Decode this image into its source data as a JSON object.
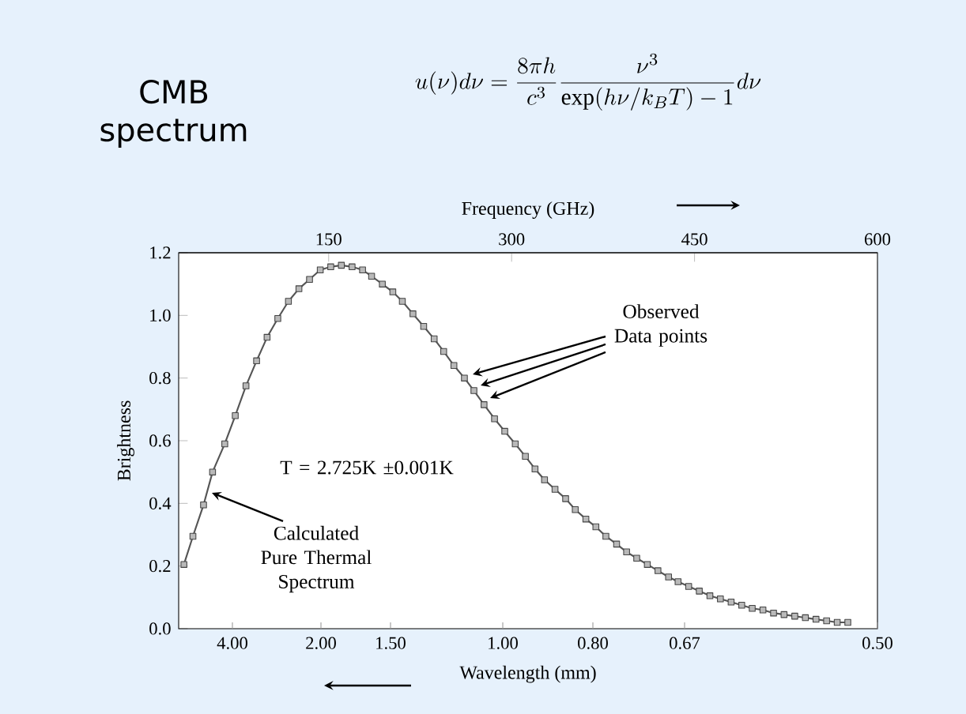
{
  "chart_data": {
    "type": "line",
    "title": "CMB spectrum",
    "subtitle": "u(\\nu)d\\nu=\\frac{8\\pi h}{c^3}\\frac{\\nu^3}{\\exp(h\\nu/k_BT)-1}d\\nu",
    "xlabel": "Frequency (GHz)",
    "x2label": "Wavelength (mm)",
    "ylabel": "Brightness",
    "x": [
      31.3,
      38.7,
      47.4,
      54.8,
      64.8,
      73.4,
      82.2,
      90.9,
      99.5,
      108.3,
      117,
      125.6,
      134.3,
      143.1,
      151.7,
      160.4,
      169.2,
      177.8,
      185.2,
      194,
      202.6,
      210.4,
      219.1,
      227.9,
      236.5,
      244.3,
      252.7,
      261.3,
      269.1,
      277.4,
      286,
      294.4,
      303,
      311.3,
      319.2,
      327,
      335.6,
      344.3,
      352.2,
      360.9,
      369.1,
      377.3,
      386.1,
      394.3,
      402.6,
      411.3,
      420,
      428.7,
      436.5,
      445.2,
      453.9,
      462.6,
      471.2,
      480,
      488.7,
      497.3,
      506.1,
      514.8,
      523.4,
      532.2,
      540.9,
      549.6,
      558.3,
      567,
      575.7
    ],
    "series": [
      {
        "color": "#555555",
        "values": [
          0.205,
          0.295,
          0.395,
          0.5,
          0.59,
          0.68,
          0.775,
          0.855,
          0.93,
          0.99,
          1.045,
          1.085,
          1.115,
          1.145,
          1.155,
          1.16,
          1.155,
          1.145,
          1.125,
          1.1,
          1.075,
          1.045,
          1.005,
          0.965,
          0.925,
          0.885,
          0.84,
          0.8,
          0.76,
          0.715,
          0.67,
          0.63,
          0.59,
          0.55,
          0.51,
          0.475,
          0.445,
          0.415,
          0.38,
          0.35,
          0.325,
          0.295,
          0.27,
          0.245,
          0.225,
          0.205,
          0.185,
          0.165,
          0.15,
          0.135,
          0.12,
          0.105,
          0.095,
          0.085,
          0.075,
          0.065,
          0.06,
          0.05,
          0.045,
          0.04,
          0.035,
          0.03,
          0.025,
          0.02,
          0.02
        ]
      }
    ],
    "xlim": [
      27,
      600
    ],
    "xticks": [
      150,
      300,
      450,
      600
    ],
    "ylim": [
      0,
      1.2
    ],
    "yticks": [
      {
        "value": 0,
        "label": "0.0"
      },
      {
        "value": 0.2,
        "label": "0.2"
      },
      {
        "value": 0.4,
        "label": "0.4"
      },
      {
        "value": 0.6,
        "label": "0.6"
      },
      {
        "value": 0.8,
        "label": "0.8"
      },
      {
        "value": 1.0,
        "label": "1.0"
      },
      {
        "value": 1.2,
        "label": "1.2"
      }
    ],
    "marker": "square",
    "line_style": "solid",
    "annotations": [
      "T = 2.725K ±0.001K",
      "Observed Data points",
      "Calculated Pure Thermal Spectrum",
      "4.00",
      "2.00",
      "1.50",
      "1.00",
      "0.80",
      "0.67",
      "0.50"
    ]
  }
}
